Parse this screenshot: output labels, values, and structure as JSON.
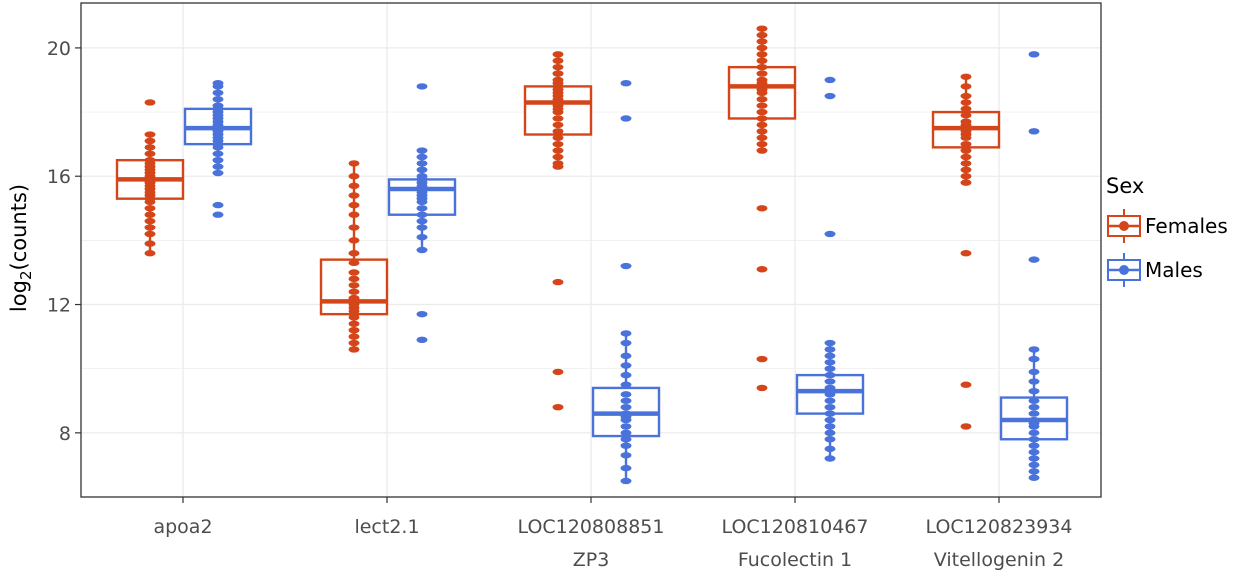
{
  "chart_data": {
    "type": "box",
    "ylabel_main": "log",
    "ylabel_sub": "2",
    "ylabel_rest": "(counts)",
    "xlabel": "",
    "ylim": [
      6.0,
      21.4
    ],
    "yticks": [
      8,
      12,
      16,
      20
    ],
    "grid": true,
    "legend": {
      "title": "Sex",
      "position": "right",
      "entries": [
        {
          "name": "Females",
          "color": "#D4461A"
        },
        {
          "name": "Males",
          "color": "#4A72DB"
        }
      ]
    },
    "categories": [
      {
        "line1": "apoa2",
        "line2": ""
      },
      {
        "line1": "lect2.1",
        "line2": ""
      },
      {
        "line1": "LOC120808851",
        "line2": "ZP3"
      },
      {
        "line1": "LOC120810467",
        "line2": "Fucolectin 1"
      },
      {
        "line1": "LOC120823934",
        "line2": "Vitellogenin 2"
      }
    ],
    "series": [
      {
        "name": "Females",
        "color": "#D4461A",
        "boxes": [
          {
            "q1": 15.3,
            "median": 15.9,
            "q3": 16.5,
            "whisker_low": 13.6,
            "whisker_high": 17.3,
            "points": [
              18.3,
              17.3,
              17.1,
              16.9,
              16.7,
              16.5,
              16.4,
              16.3,
              16.2,
              16.1,
              16.0,
              15.95,
              15.9,
              15.85,
              15.8,
              15.7,
              15.6,
              15.5,
              15.4,
              15.3,
              15.2,
              15.0,
              14.8,
              14.6,
              14.4,
              14.2,
              13.9,
              13.6
            ]
          },
          {
            "q1": 11.7,
            "median": 12.1,
            "q3": 13.4,
            "whisker_low": 10.6,
            "whisker_high": 16.4,
            "points": [
              16.4,
              16.0,
              15.7,
              15.4,
              15.1,
              14.8,
              14.4,
              14.0,
              13.6,
              13.3,
              13.0,
              12.8,
              12.6,
              12.4,
              12.2,
              12.1,
              12.0,
              11.9,
              11.8,
              11.7,
              11.6,
              11.4,
              11.2,
              11.0,
              10.8,
              10.6
            ]
          },
          {
            "q1": 17.3,
            "median": 18.3,
            "q3": 18.8,
            "whisker_low": 16.3,
            "whisker_high": 19.8,
            "points": [
              19.8,
              19.6,
              19.4,
              19.2,
              19.0,
              18.9,
              18.8,
              18.7,
              18.6,
              18.5,
              18.4,
              18.3,
              18.2,
              18.1,
              18.0,
              17.8,
              17.6,
              17.4,
              17.2,
              17.0,
              16.8,
              16.6,
              16.4,
              16.3,
              12.7,
              9.9,
              8.8
            ]
          },
          {
            "q1": 17.8,
            "median": 18.8,
            "q3": 19.4,
            "whisker_low": 16.8,
            "whisker_high": 20.6,
            "points": [
              20.6,
              20.4,
              20.2,
              20.0,
              19.8,
              19.6,
              19.4,
              19.2,
              19.0,
              18.9,
              18.8,
              18.7,
              18.6,
              18.4,
              18.2,
              18.0,
              17.8,
              17.6,
              17.4,
              17.2,
              17.0,
              16.8,
              15.0,
              13.1,
              10.3,
              9.4
            ]
          },
          {
            "q1": 16.9,
            "median": 17.5,
            "q3": 18.0,
            "whisker_low": 15.8,
            "whisker_high": 19.1,
            "points": [
              19.1,
              18.8,
              18.5,
              18.3,
              18.1,
              17.9,
              17.7,
              17.6,
              17.5,
              17.4,
              17.3,
              17.2,
              17.0,
              16.8,
              16.6,
              16.4,
              16.2,
              16.0,
              15.8,
              13.6,
              9.5,
              8.2
            ]
          }
        ]
      },
      {
        "name": "Males",
        "color": "#4A72DB",
        "boxes": [
          {
            "q1": 17.0,
            "median": 17.5,
            "q3": 18.1,
            "whisker_low": 16.1,
            "whisker_high": 18.9,
            "points": [
              18.9,
              18.8,
              18.6,
              18.4,
              18.2,
              18.1,
              18.0,
              17.9,
              17.8,
              17.7,
              17.6,
              17.5,
              17.45,
              17.4,
              17.3,
              17.2,
              17.1,
              17.0,
              16.9,
              16.7,
              16.5,
              16.3,
              16.1,
              15.1,
              14.8
            ]
          },
          {
            "q1": 14.8,
            "median": 15.6,
            "q3": 15.9,
            "whisker_low": 13.7,
            "whisker_high": 16.8,
            "points": [
              18.8,
              16.8,
              16.6,
              16.4,
              16.2,
              16.0,
              15.9,
              15.8,
              15.7,
              15.6,
              15.5,
              15.4,
              15.3,
              15.2,
              15.0,
              14.8,
              14.6,
              14.4,
              14.1,
              13.7,
              11.7,
              10.9
            ]
          },
          {
            "q1": 7.9,
            "median": 8.6,
            "q3": 9.4,
            "whisker_low": 6.5,
            "whisker_high": 11.1,
            "points": [
              18.9,
              17.8,
              13.2,
              11.1,
              10.8,
              10.4,
              10.1,
              9.8,
              9.5,
              9.2,
              9.0,
              8.8,
              8.6,
              8.5,
              8.4,
              8.2,
              8.0,
              7.8,
              7.6,
              7.3,
              6.9,
              6.5
            ]
          },
          {
            "q1": 8.6,
            "median": 9.3,
            "q3": 9.8,
            "whisker_low": 7.2,
            "whisker_high": 10.8,
            "points": [
              19.0,
              18.5,
              14.2,
              10.8,
              10.6,
              10.4,
              10.2,
              10.0,
              9.8,
              9.6,
              9.4,
              9.3,
              9.2,
              9.0,
              8.8,
              8.6,
              8.4,
              8.2,
              8.0,
              7.8,
              7.5,
              7.2
            ]
          },
          {
            "q1": 7.8,
            "median": 8.4,
            "q3": 9.1,
            "whisker_low": 6.6,
            "whisker_high": 10.6,
            "points": [
              19.8,
              17.4,
              13.4,
              10.6,
              10.3,
              9.9,
              9.6,
              9.3,
              9.0,
              8.8,
              8.6,
              8.4,
              8.3,
              8.2,
              8.0,
              7.8,
              7.6,
              7.4,
              7.2,
              7.0,
              6.8,
              6.6
            ]
          }
        ]
      }
    ]
  }
}
